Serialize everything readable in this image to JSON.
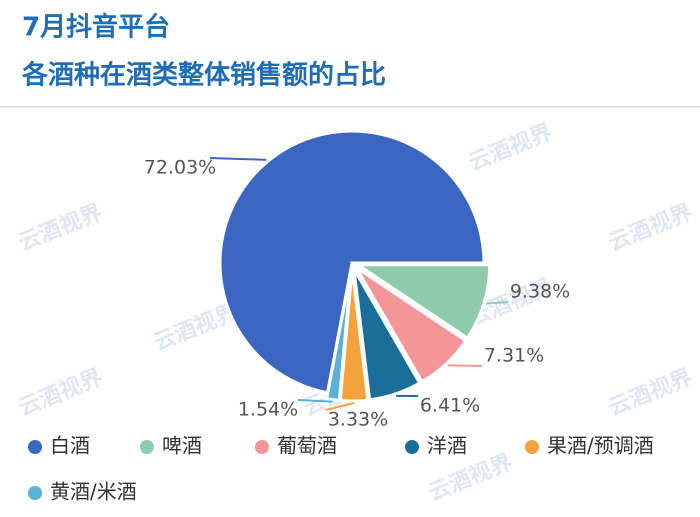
{
  "chart_data": {
    "type": "pie",
    "title": [
      "7月抖音平台",
      "各酒种在酒类整体销售额的占比"
    ],
    "watermark": "云酒视界",
    "categories": [
      "白酒",
      "啤酒",
      "葡萄酒",
      "洋酒",
      "果酒/预调酒",
      "黄酒/米酒"
    ],
    "values": [
      72.03,
      9.38,
      7.31,
      6.41,
      3.33,
      1.54
    ],
    "value_labels": [
      "72.03%",
      "9.38%",
      "7.31%",
      "6.41%",
      "3.33%",
      "1.54%"
    ],
    "colors": [
      "#3a65c0",
      "#8ecbad",
      "#f4959a",
      "#1a6e9a",
      "#f5a23d",
      "#5ab0d6"
    ],
    "legend": "bottom"
  }
}
